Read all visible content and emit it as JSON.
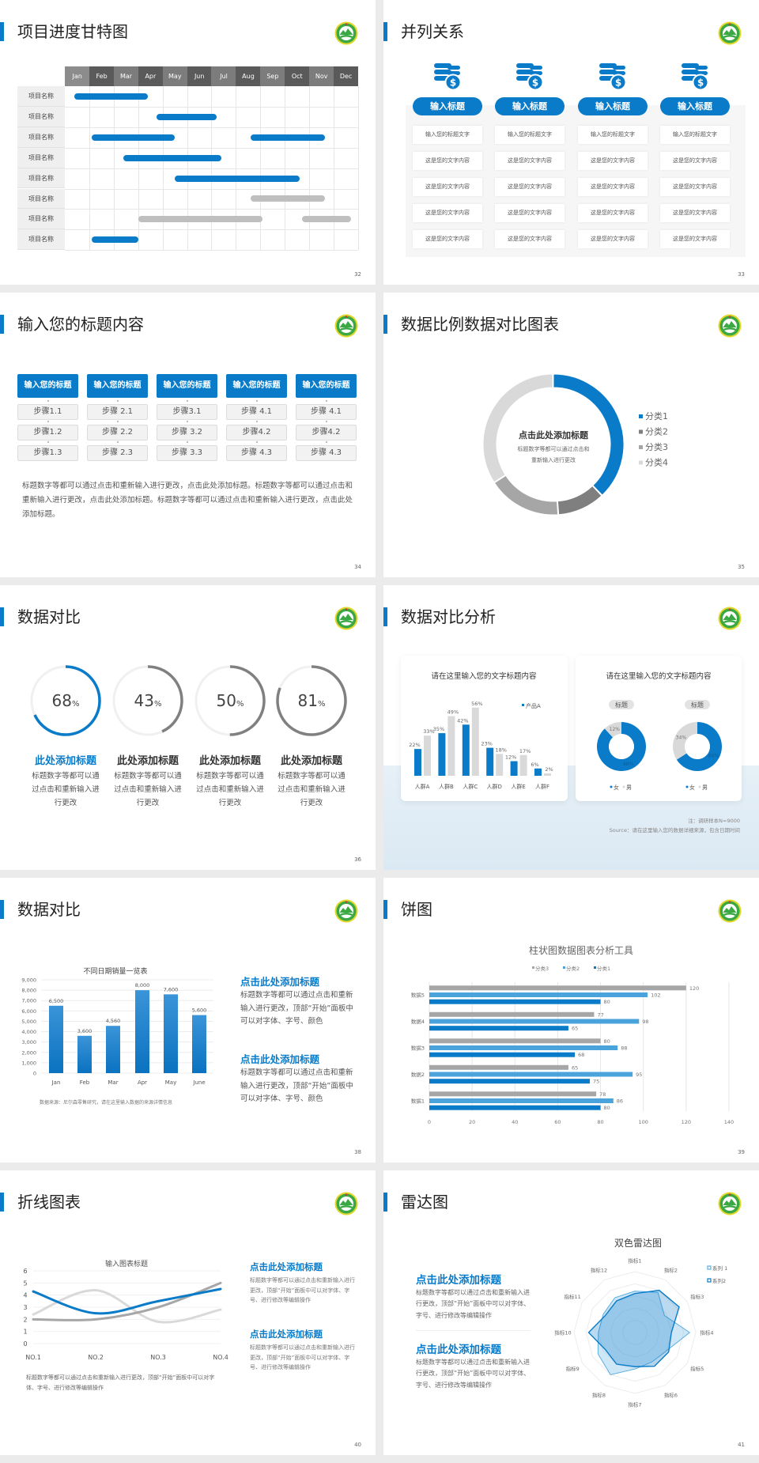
{
  "colors": {
    "accent": "#0a7bc8",
    "gray_dark": "#808080",
    "gray_mid": "#a6a6a6",
    "gray_light": "#d9d9d9"
  },
  "slides": [
    {
      "title": "项目进度甘特图",
      "page": "32"
    },
    {
      "title": "并列关系",
      "page": "33",
      "icon": "coins-dollar-icon",
      "columns": [
        {
          "heading": "输入标题",
          "cells": [
            "输入您的标题文字",
            "这是您的文字内容",
            "这是您的文字内容",
            "这是您的文字内容",
            "这是您的文字内容"
          ]
        },
        {
          "heading": "输入标题",
          "cells": [
            "输入您的标题文字",
            "这是您的文字内容",
            "这是您的文字内容",
            "这是您的文字内容",
            "这是您的文字内容"
          ]
        },
        {
          "heading": "输入标题",
          "cells": [
            "输入您的标题文字",
            "这是您的文字内容",
            "这是您的文字内容",
            "这是您的文字内容",
            "这是您的文字内容"
          ]
        },
        {
          "heading": "输入标题",
          "cells": [
            "输入您的标题文字",
            "这是您的文字内容",
            "这是您的文字内容",
            "这是您的文字内容",
            "这是您的文字内容"
          ]
        }
      ]
    },
    {
      "title": "输入您的标题内容",
      "page": "34",
      "columns": [
        {
          "heading": "输入您的标题",
          "steps": [
            "步骤1.1",
            "步骤1.2",
            "步骤1.3"
          ]
        },
        {
          "heading": "输入您的标题",
          "steps": [
            "步骤 2.1",
            "步骤 2.2",
            "步骤 2.3"
          ]
        },
        {
          "heading": "输入您的标题",
          "steps": [
            "步骤3.1",
            "步骤 3.2",
            "步骤 3.3"
          ]
        },
        {
          "heading": "输入您的标题",
          "steps": [
            "步骤 4.1",
            "步骤4.2",
            "步骤 4.3"
          ]
        },
        {
          "heading": "输入您的标题",
          "steps": [
            "步骤 4.1",
            "步骤4.2",
            "步骤 4.3"
          ]
        }
      ],
      "paragraph": "标题数字等都可以通过点击和重新输入进行更改，点击此处添加标题。标题数字等都可以通过点击和重新输入进行更改，点击此处添加标题。标题数字等都可以通过点击和重新输入进行更改，点击此处添加标题。"
    },
    {
      "title": "数据比例数据对比图表",
      "page": "35",
      "center_title": "点击此处添加标题",
      "center_text": [
        "标题数字等都可以通过点击和",
        "重新输入进行更改"
      ]
    },
    {
      "title": "数据对比",
      "page": "36",
      "items": [
        {
          "percent": "68",
          "unit": "%",
          "value": 0.68,
          "highlight": true,
          "heading": "此处添加标题",
          "text": "标题数字等都可以通过点击和重新输入进行更改"
        },
        {
          "percent": "43",
          "unit": "%",
          "value": 0.43,
          "highlight": false,
          "heading": "此处添加标题",
          "text": "标题数字等都可以通过点击和重新输入进行更改"
        },
        {
          "percent": "50",
          "unit": "%",
          "value": 0.5,
          "highlight": false,
          "heading": "此处添加标题",
          "text": "标题数字等都可以通过点击和重新输入进行更改"
        },
        {
          "percent": "81",
          "unit": "%",
          "value": 0.81,
          "highlight": false,
          "heading": "此处添加标题",
          "text": "标题数字等都可以通过点击和重新输入进行更改"
        }
      ]
    },
    {
      "title": "数据对比分析",
      "page": "37",
      "note": "注：调研样本N=9000",
      "source": "Source：请在这里输入您的数据详细来源，包含日期时间"
    },
    {
      "title": "数据对比",
      "page": "38",
      "source": "数据来源：尼尔森零售研究，请在这里输入数据的来源详情信息",
      "blocks": [
        {
          "heading": "点击此处添加标题",
          "text": "标题数字等都可以通过点击和重新输入进行更改，顶部“开始”面板中可以对字体、字号、颜色"
        },
        {
          "heading": "点击此处添加标题",
          "text": "标题数字等都可以通过点击和重新输入进行更改，顶部“开始”面板中可以对字体、字号、颜色"
        }
      ]
    },
    {
      "title": "饼图",
      "page": "39"
    },
    {
      "title": "折线图表",
      "page": "40",
      "caption": "标题数字等都可以通过点击和重新输入进行更改，顶部“开始”面板中可以对字体、字号、进行修改等编辑操作",
      "blocks": [
        {
          "heading": "点击此处添加标题",
          "text": "标题数字等都可以通过点击和重新输入进行更改，顶部“开始”面板中可以对字体、字号、进行修改等编辑操作"
        },
        {
          "heading": "点击此处添加标题",
          "text": "标题数字等都可以通过点击和重新输入进行更改，顶部“开始”面板中可以对字体、字号、进行修改等编辑操作"
        }
      ]
    },
    {
      "title": "雷达图",
      "page": "41",
      "blocks": [
        {
          "heading": "点击此处添加标题",
          "text": "标题数字等都可以通过点击和重新输入进行更改，顶部“开始”面板中可以对字体、字号、进行修改等编辑操作"
        },
        {
          "heading": "点击此处添加标题",
          "text": "标题数字等都可以通过点击和重新输入进行更改，顶部“开始”面板中可以对字体、字号、进行修改等编辑操作"
        }
      ]
    }
  ],
  "chart_data": [
    {
      "type": "gantt",
      "months": [
        "Jan",
        "Feb",
        "Mar",
        "Apr",
        "May",
        "Jun",
        "Jul",
        "Aug",
        "Sep",
        "Oct",
        "Nov",
        "Dec"
      ],
      "rows": [
        {
          "label": "项目名称",
          "bars": [
            {
              "start": 0.4,
              "end": 3.4,
              "color": "#0a7bc8"
            }
          ]
        },
        {
          "label": "项目名称",
          "bars": [
            {
              "start": 3.75,
              "end": 6.2,
              "color": "#0a7bc8"
            }
          ]
        },
        {
          "label": "项目名称",
          "bars": [
            {
              "start": 1.1,
              "end": 4.5,
              "color": "#0a7bc8"
            },
            {
              "start": 7.6,
              "end": 10.65,
              "color": "#0a7bc8"
            }
          ]
        },
        {
          "label": "项目名称",
          "bars": [
            {
              "start": 2.4,
              "end": 6.4,
              "color": "#0a7bc8"
            }
          ]
        },
        {
          "label": "项目名称",
          "bars": [
            {
              "start": 4.5,
              "end": 9.6,
              "color": "#0a7bc8"
            }
          ]
        },
        {
          "label": "项目名称",
          "bars": [
            {
              "start": 7.6,
              "end": 10.65,
              "color": "#bfbfbf"
            }
          ]
        },
        {
          "label": "项目名称",
          "bars": [
            {
              "start": 3.0,
              "end": 8.1,
              "color": "#bfbfbf"
            },
            {
              "start": 9.7,
              "end": 11.7,
              "color": "#bfbfbf"
            }
          ]
        },
        {
          "label": "项目名称",
          "bars": [
            {
              "start": 1.1,
              "end": 3.0,
              "color": "#0a7bc8"
            }
          ]
        }
      ]
    },
    {
      "type": "pie",
      "subtype": "donut",
      "categories": [
        "分类1",
        "分类2",
        "分类3",
        "分类4"
      ],
      "values": [
        38,
        11,
        17,
        34
      ],
      "colors": [
        "#0a7bc8",
        "#7f7f7f",
        "#a6a6a6",
        "#d9d9d9"
      ],
      "legend": "right"
    },
    {
      "type": "bar",
      "categories": [
        "人群A",
        "人群B",
        "人群C",
        "人群D",
        "人群E",
        "人群F"
      ],
      "series": [
        {
          "name": "产品A",
          "values": [
            22,
            35,
            42,
            23,
            12,
            6
          ],
          "labels": [
            "22%",
            "35%",
            "42%",
            "23%",
            "12%",
            "6%"
          ],
          "color": "#0a7bc8"
        },
        {
          "values": [
            33,
            49,
            56,
            18,
            17,
            2
          ],
          "labels": [
            "33%",
            "49%",
            "56%",
            "18%",
            "17%",
            "2%"
          ],
          "color": "#d9d9d9"
        }
      ],
      "title": "请在这里输入您的文字标题内容",
      "ylim": [
        0,
        60
      ],
      "legend": "top-right"
    },
    {
      "type": "pie",
      "subtype": "donut",
      "title": "请在这里输入您的文字标题内容",
      "categories": [
        "女",
        "男"
      ],
      "charts": [
        {
          "label": "标题",
          "values": [
            88,
            12
          ],
          "labels": [
            "88%",
            "12%"
          ]
        },
        {
          "label": "标题",
          "values": [
            66,
            34
          ],
          "labels": [
            "66%",
            "34%"
          ]
        }
      ],
      "colors": [
        "#0a7bc8",
        "#d9d9d9"
      ],
      "legend": "bottom"
    },
    {
      "type": "bar",
      "title": "不同日期销量一览表",
      "categories": [
        "Jan",
        "Feb",
        "Mar",
        "Apr",
        "May",
        "June"
      ],
      "values": [
        6500,
        3600,
        4560,
        8000,
        7600,
        5600
      ],
      "labels": [
        "6,500",
        "3,600",
        "4,560",
        "8,000",
        "7,600",
        "5,600"
      ],
      "yticks": [
        "0",
        "1,000",
        "2,000",
        "3,000",
        "4,000",
        "5,000",
        "6,000",
        "7,000",
        "8,000",
        "9,000"
      ],
      "ylim": [
        0,
        9000
      ],
      "grid": true
    },
    {
      "type": "bar",
      "orientation": "horizontal",
      "title": "柱状图数据图表分析工具",
      "categories": [
        "数据1",
        "数据2",
        "数据3",
        "数据4",
        "数据5"
      ],
      "series": [
        {
          "name": "分类1",
          "values": [
            80,
            75,
            68,
            65,
            80
          ],
          "color": "#0a7bc8"
        },
        {
          "name": "分类2",
          "values": [
            86,
            95,
            88,
            98,
            102
          ],
          "color": "#4aa3db"
        },
        {
          "name": "分类3",
          "values": [
            78,
            65,
            80,
            77,
            120
          ],
          "color": "#a6a6a6"
        }
      ],
      "xticks": [
        "0",
        "20",
        "40",
        "60",
        "80",
        "100",
        "120",
        "140"
      ],
      "xlim": [
        0,
        140
      ],
      "grid": true,
      "legend": "top"
    },
    {
      "type": "line",
      "title": "输入图表标题",
      "categories": [
        "NO.1",
        "NO.2",
        "NO.3",
        "NO.4"
      ],
      "series": [
        {
          "values": [
            4.3,
            2.5,
            3.5,
            4.5
          ],
          "color": "#0a7bc8"
        },
        {
          "values": [
            2.4,
            4.4,
            1.8,
            2.8
          ],
          "color": "#d9d9d9"
        },
        {
          "values": [
            2.0,
            2.0,
            3.0,
            5.0
          ],
          "color": "#a6a6a6"
        }
      ],
      "yticks": [
        "0",
        "1",
        "2",
        "3",
        "4",
        "5",
        "6"
      ],
      "ylim": [
        0,
        6
      ],
      "smooth": true
    },
    {
      "type": "radar",
      "title": "双色雷达图",
      "categories": [
        "指标1",
        "指标2",
        "指标3",
        "指标4",
        "指标5",
        "指标6",
        "指标7",
        "指标8",
        "指标9",
        "指标10",
        "指标11",
        "指标12"
      ],
      "series": [
        {
          "name": "系列 1",
          "values": [
            3.4,
            3.8,
            2.8,
            4.5,
            3.0,
            2.8,
            3.0,
            4.0,
            3.5,
            3.0,
            3.0,
            3.3
          ],
          "color": "#5aaee0"
        },
        {
          "name": "系列2",
          "values": [
            3.2,
            4.0,
            4.2,
            3.0,
            3.2,
            3.2,
            2.8,
            3.0,
            2.8,
            3.8,
            2.8,
            3.0
          ],
          "color": "#0a7bc8"
        }
      ],
      "rmax": 5,
      "legend": "top-right"
    }
  ]
}
